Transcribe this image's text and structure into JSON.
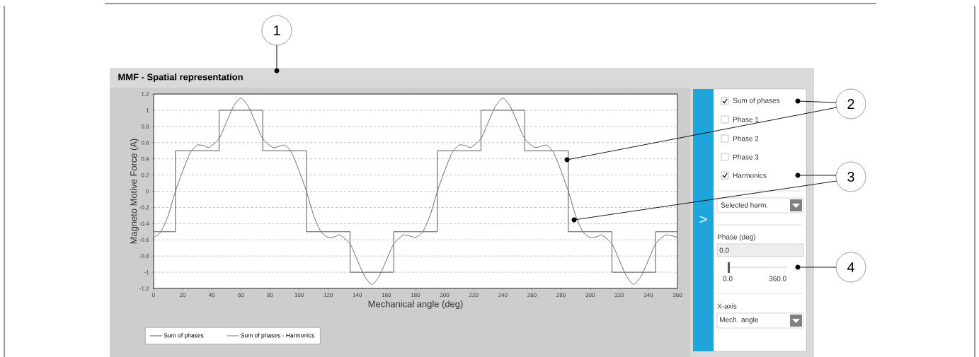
{
  "chart_data": {
    "type": "line",
    "title": "MMF - Spatial representation",
    "xlabel": "Mechanical angle (deg)",
    "ylabel": "Magneto Motive Force (A)",
    "xlim": [
      0,
      360
    ],
    "ylim": [
      -1.2,
      1.2
    ],
    "xticks": [
      0,
      20,
      40,
      60,
      80,
      100,
      120,
      140,
      160,
      180,
      200,
      220,
      240,
      260,
      280,
      300,
      320,
      340,
      360
    ],
    "yticks": [
      -1.2,
      -1,
      -0.8,
      -0.6,
      -0.4,
      -0.2,
      0,
      0.2,
      0.4,
      0.6,
      0.8,
      1,
      1.2
    ],
    "grid": "y",
    "legend": "bottom",
    "marker": "none",
    "line_style": "solid",
    "series": [
      {
        "name": "Sum of phases",
        "type": "step",
        "color": "#555555",
        "x": [
          0,
          15,
          45,
          75,
          105,
          135,
          165,
          195,
          225,
          255,
          285,
          315,
          345,
          360
        ],
        "values": [
          -0.5,
          0.5,
          1,
          0.5,
          -0.5,
          -1,
          -0.5,
          0.5,
          1,
          0.5,
          -0.5,
          -1,
          -0.5,
          -0.5
        ]
      },
      {
        "name": "Sum of phases - Harmonics",
        "type": "line",
        "color": "#6e6e6e",
        "x": [
          0,
          5,
          10,
          15,
          20,
          25,
          30,
          35,
          38,
          45,
          50,
          55,
          60,
          65,
          70,
          75,
          82,
          90,
          95,
          100,
          105,
          110,
          115,
          120,
          125,
          128,
          135,
          140,
          145,
          150,
          155,
          160,
          165,
          172,
          180,
          185,
          190,
          195,
          200,
          205,
          210,
          215,
          218,
          225,
          230,
          235,
          240,
          245,
          250,
          255,
          262,
          270,
          275,
          280,
          285,
          290,
          295,
          300,
          305,
          308,
          315,
          320,
          325,
          330,
          335,
          340,
          345,
          352,
          360
        ],
        "values": [
          -0.57,
          -0.5,
          -0.3,
          0,
          0.25,
          0.47,
          0.57,
          0.56,
          0.54,
          0.65,
          0.85,
          1.05,
          1.15,
          1.05,
          0.85,
          0.65,
          0.54,
          0.57,
          0.47,
          0.25,
          0,
          -0.3,
          -0.5,
          -0.57,
          -0.56,
          -0.54,
          -0.65,
          -0.85,
          -1.05,
          -1.15,
          -1.05,
          -0.85,
          -0.65,
          -0.54,
          -0.57,
          -0.5,
          -0.3,
          0,
          0.25,
          0.47,
          0.57,
          0.56,
          0.54,
          0.65,
          0.85,
          1.05,
          1.15,
          1.05,
          0.85,
          0.65,
          0.54,
          0.57,
          0.47,
          0.25,
          0,
          -0.3,
          -0.5,
          -0.57,
          -0.56,
          -0.54,
          -0.65,
          -0.85,
          -1.05,
          -1.15,
          -1.05,
          -0.85,
          -0.65,
          -0.54,
          -0.57
        ]
      }
    ],
    "annotations": [
      "1",
      "2",
      "3",
      "4",
      "Sum of phases",
      "Phase 1",
      "Phase 2",
      "Phase 3",
      "Harmonics",
      "Selected harm.",
      "Phase (deg)",
      "0.0",
      "0.0",
      "360.0",
      "X-axis",
      "Mech. angle",
      ">"
    ]
  }
}
